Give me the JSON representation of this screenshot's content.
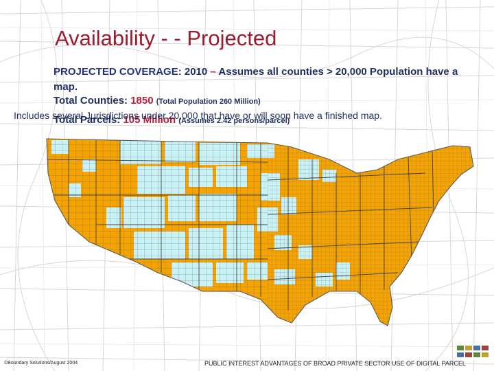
{
  "slide": {
    "title": "Availability - - Projected",
    "coverage": {
      "label": "PROJECTED COVERAGE:",
      "year": "2010",
      "dash": "–",
      "text": "Assumes all counties > 20,000 Population have a map."
    },
    "counties": {
      "label": "Total Counties:",
      "value": "1850",
      "note": "(Total Population 260 Million)"
    },
    "includes": "Includes several Jurisdictions under 20,000 that have or will soon have a finished map.",
    "parcels": {
      "label": "Total Parcels:",
      "value": "105 Million",
      "note": "(Assumes 2.42 persons/parcel)"
    }
  },
  "map": {
    "covered_color": "#f5a300",
    "uncovered_color": "#c9f2f6",
    "border_color": "#5a5a5a"
  },
  "footer": {
    "copyright": "©Boundary Solutions/August 2004",
    "subtitle": "PUBLIC INTEREST ADVANTAGES OF BROAD PRIVATE SECTOR USE OF DIGITAL PARCEL"
  }
}
